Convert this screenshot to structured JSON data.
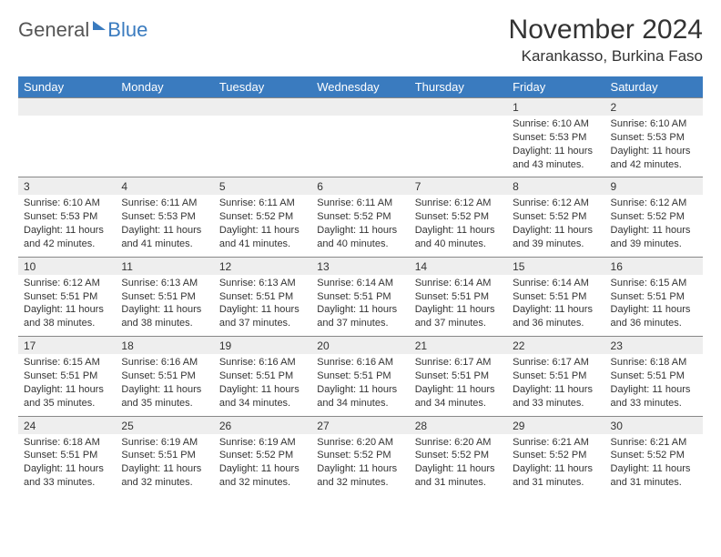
{
  "logo": {
    "general": "General",
    "blue": "Blue"
  },
  "header": {
    "month": "November 2024",
    "location": "Karankasso, Burkina Faso"
  },
  "columns": [
    "Sunday",
    "Monday",
    "Tuesday",
    "Wednesday",
    "Thursday",
    "Friday",
    "Saturday"
  ],
  "colors": {
    "header_bg": "#3a7bbf",
    "header_text": "#ffffff",
    "daynum_bg": "#eeeeee",
    "border": "#888888",
    "text": "#333333",
    "logo_gray": "#555555",
    "logo_blue": "#3a7bbf",
    "background": "#ffffff"
  },
  "typography": {
    "title_size_pt": 30,
    "location_size_pt": 17,
    "header_size_pt": 13,
    "daynum_size_pt": 12,
    "info_size_pt": 11
  },
  "weeks": [
    {
      "nums": [
        "",
        "",
        "",
        "",
        "",
        "1",
        "2"
      ],
      "info": [
        "",
        "",
        "",
        "",
        "",
        "Sunrise: 6:10 AM\nSunset: 5:53 PM\nDaylight: 11 hours and 43 minutes.",
        "Sunrise: 6:10 AM\nSunset: 5:53 PM\nDaylight: 11 hours and 42 minutes."
      ]
    },
    {
      "nums": [
        "3",
        "4",
        "5",
        "6",
        "7",
        "8",
        "9"
      ],
      "info": [
        "Sunrise: 6:10 AM\nSunset: 5:53 PM\nDaylight: 11 hours and 42 minutes.",
        "Sunrise: 6:11 AM\nSunset: 5:53 PM\nDaylight: 11 hours and 41 minutes.",
        "Sunrise: 6:11 AM\nSunset: 5:52 PM\nDaylight: 11 hours and 41 minutes.",
        "Sunrise: 6:11 AM\nSunset: 5:52 PM\nDaylight: 11 hours and 40 minutes.",
        "Sunrise: 6:12 AM\nSunset: 5:52 PM\nDaylight: 11 hours and 40 minutes.",
        "Sunrise: 6:12 AM\nSunset: 5:52 PM\nDaylight: 11 hours and 39 minutes.",
        "Sunrise: 6:12 AM\nSunset: 5:52 PM\nDaylight: 11 hours and 39 minutes."
      ]
    },
    {
      "nums": [
        "10",
        "11",
        "12",
        "13",
        "14",
        "15",
        "16"
      ],
      "info": [
        "Sunrise: 6:12 AM\nSunset: 5:51 PM\nDaylight: 11 hours and 38 minutes.",
        "Sunrise: 6:13 AM\nSunset: 5:51 PM\nDaylight: 11 hours and 38 minutes.",
        "Sunrise: 6:13 AM\nSunset: 5:51 PM\nDaylight: 11 hours and 37 minutes.",
        "Sunrise: 6:14 AM\nSunset: 5:51 PM\nDaylight: 11 hours and 37 minutes.",
        "Sunrise: 6:14 AM\nSunset: 5:51 PM\nDaylight: 11 hours and 37 minutes.",
        "Sunrise: 6:14 AM\nSunset: 5:51 PM\nDaylight: 11 hours and 36 minutes.",
        "Sunrise: 6:15 AM\nSunset: 5:51 PM\nDaylight: 11 hours and 36 minutes."
      ]
    },
    {
      "nums": [
        "17",
        "18",
        "19",
        "20",
        "21",
        "22",
        "23"
      ],
      "info": [
        "Sunrise: 6:15 AM\nSunset: 5:51 PM\nDaylight: 11 hours and 35 minutes.",
        "Sunrise: 6:16 AM\nSunset: 5:51 PM\nDaylight: 11 hours and 35 minutes.",
        "Sunrise: 6:16 AM\nSunset: 5:51 PM\nDaylight: 11 hours and 34 minutes.",
        "Sunrise: 6:16 AM\nSunset: 5:51 PM\nDaylight: 11 hours and 34 minutes.",
        "Sunrise: 6:17 AM\nSunset: 5:51 PM\nDaylight: 11 hours and 34 minutes.",
        "Sunrise: 6:17 AM\nSunset: 5:51 PM\nDaylight: 11 hours and 33 minutes.",
        "Sunrise: 6:18 AM\nSunset: 5:51 PM\nDaylight: 11 hours and 33 minutes."
      ]
    },
    {
      "nums": [
        "24",
        "25",
        "26",
        "27",
        "28",
        "29",
        "30"
      ],
      "info": [
        "Sunrise: 6:18 AM\nSunset: 5:51 PM\nDaylight: 11 hours and 33 minutes.",
        "Sunrise: 6:19 AM\nSunset: 5:51 PM\nDaylight: 11 hours and 32 minutes.",
        "Sunrise: 6:19 AM\nSunset: 5:52 PM\nDaylight: 11 hours and 32 minutes.",
        "Sunrise: 6:20 AM\nSunset: 5:52 PM\nDaylight: 11 hours and 32 minutes.",
        "Sunrise: 6:20 AM\nSunset: 5:52 PM\nDaylight: 11 hours and 31 minutes.",
        "Sunrise: 6:21 AM\nSunset: 5:52 PM\nDaylight: 11 hours and 31 minutes.",
        "Sunrise: 6:21 AM\nSunset: 5:52 PM\nDaylight: 11 hours and 31 minutes."
      ]
    }
  ]
}
